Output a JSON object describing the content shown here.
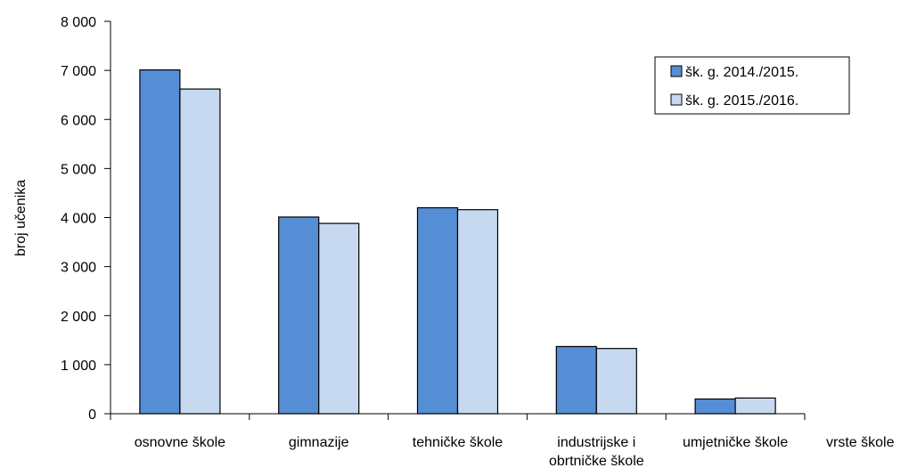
{
  "chart_data": {
    "type": "bar",
    "title": "",
    "xlabel": "vrste škole",
    "ylabel": "broj učenika",
    "categories": [
      [
        "osnovne škole"
      ],
      [
        "gimnazije"
      ],
      [
        "tehničke škole"
      ],
      [
        "industrijske i",
        "obrtničke škole"
      ],
      [
        "umjetničke škole"
      ]
    ],
    "series": [
      {
        "name": "šk. g. 2014./2015.",
        "values": [
          7010,
          4010,
          4200,
          1370,
          300
        ]
      },
      {
        "name": "šk. g. 2015./2016.",
        "values": [
          6620,
          3880,
          4160,
          1330,
          320
        ]
      }
    ],
    "ylim": [
      0,
      8000
    ],
    "yticks": [
      0,
      1000,
      2000,
      3000,
      4000,
      5000,
      6000,
      7000,
      8000
    ],
    "ytick_labels": [
      "0",
      "1 000",
      "2 000",
      "3 000",
      "4 000",
      "5 000",
      "6 000",
      "7 000",
      "8 000"
    ],
    "grid": false,
    "legend_position": "top-right",
    "colors": {
      "series_0": "#558ed5",
      "series_1": "#c6d9f1",
      "outline": "#000000"
    }
  }
}
